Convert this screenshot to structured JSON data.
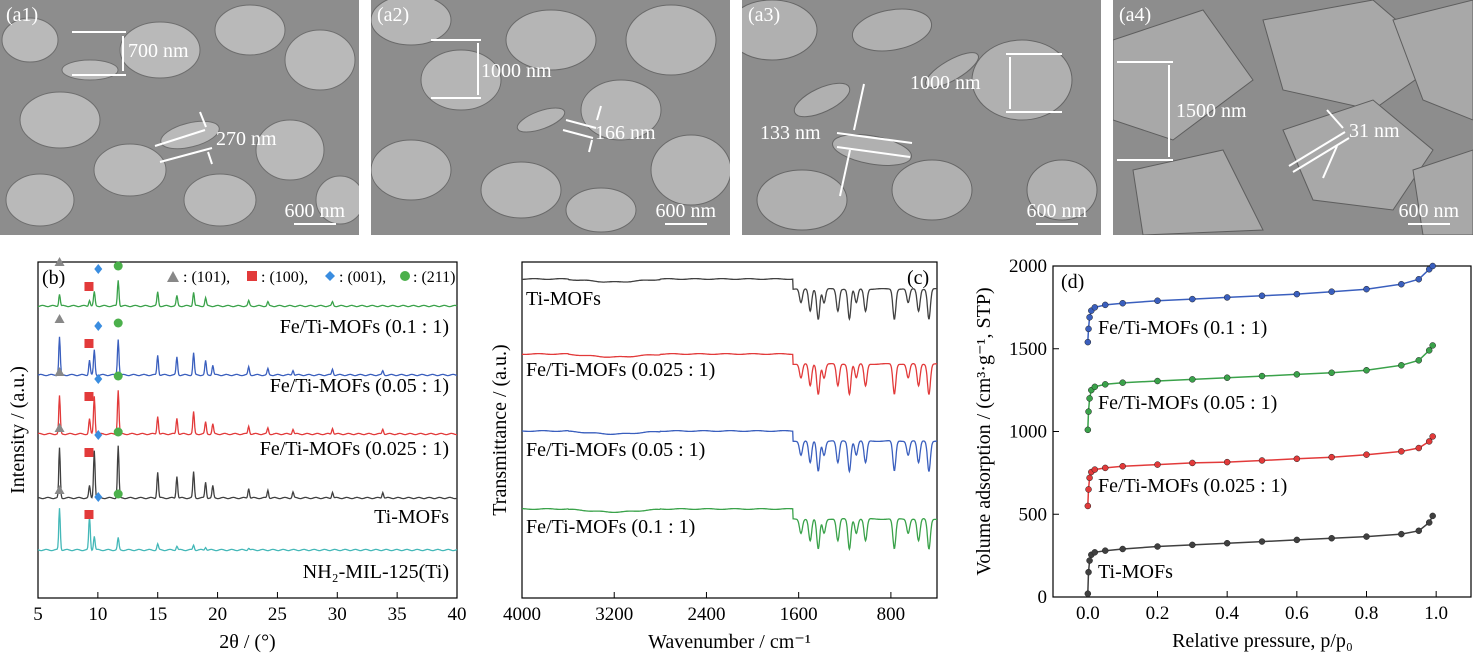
{
  "sem_panels": [
    {
      "label": "(a1)",
      "annotations": [
        "700 nm",
        "270 nm"
      ],
      "scale_bar": "600 nm"
    },
    {
      "label": "(a2)",
      "annotations": [
        "1000 nm",
        "166 nm"
      ],
      "scale_bar": "600 nm"
    },
    {
      "label": "(a3)",
      "annotations": [
        "1000 nm",
        "133 nm"
      ],
      "scale_bar": "600 nm"
    },
    {
      "label": "(a4)",
      "annotations": [
        "1500 nm",
        "31 nm"
      ],
      "scale_bar": "600 nm"
    }
  ],
  "colors": {
    "black": "#404040",
    "red": "#e23a3a",
    "blue": "#3a5fbe",
    "green": "#3aa24a",
    "teal": "#44b8b8",
    "sem_bg": "#8d8d8d"
  },
  "legend_b": {
    "tri": ": (101),",
    "sq": ": (100),",
    "dia": ": (001),",
    "dot": ": (211)"
  },
  "chart_data": [
    {
      "type": "line",
      "panel": "(b)",
      "xlabel": "2θ / (°)",
      "ylabel": "Intensity / (a.u.)",
      "xlim": [
        5,
        40
      ],
      "xticks": [
        "5",
        "10",
        "15",
        "20",
        "25",
        "30",
        "35",
        "40"
      ],
      "peaks_2theta": {
        "(101)": 6.8,
        "(100)": 9.3,
        "(001)": 9.7,
        "(211)": 11.7
      },
      "series": [
        {
          "name": "Fe/Ti-MOFs (0.1 : 1)",
          "color": "green",
          "peaks": [
            [
              6.8,
              12
            ],
            [
              9.3,
              6
            ],
            [
              9.7,
              14
            ],
            [
              11.7,
              26
            ],
            [
              15.0,
              14
            ],
            [
              16.6,
              10
            ],
            [
              18.0,
              14
            ],
            [
              19.0,
              8
            ],
            [
              22.6,
              5
            ],
            [
              24.2,
              4
            ],
            [
              29.6,
              4
            ]
          ]
        },
        {
          "name": "Fe/Ti-MOFs (0.05 : 1)",
          "color": "blue",
          "peaks": [
            [
              6.8,
              38
            ],
            [
              9.3,
              15
            ],
            [
              9.7,
              25
            ],
            [
              11.7,
              36
            ],
            [
              15.0,
              20
            ],
            [
              16.6,
              18
            ],
            [
              18.0,
              22
            ],
            [
              19.0,
              14
            ],
            [
              19.6,
              10
            ],
            [
              22.6,
              8
            ],
            [
              24.2,
              6
            ],
            [
              26.3,
              5
            ],
            [
              29.6,
              6
            ],
            [
              33.8,
              4
            ]
          ]
        },
        {
          "name": "Fe/Ti-MOFs (0.025 : 1)",
          "color": "red",
          "peaks": [
            [
              6.8,
              38
            ],
            [
              9.3,
              15
            ],
            [
              9.7,
              38
            ],
            [
              11.7,
              44
            ],
            [
              15.0,
              18
            ],
            [
              16.6,
              16
            ],
            [
              18.0,
              22
            ],
            [
              19.0,
              12
            ],
            [
              19.6,
              10
            ],
            [
              22.6,
              8
            ],
            [
              24.2,
              6
            ],
            [
              26.3,
              5
            ],
            [
              29.6,
              6
            ],
            [
              33.8,
              5
            ]
          ]
        },
        {
          "name": "Ti-MOFs",
          "color": "black",
          "peaks": [
            [
              6.8,
              50
            ],
            [
              9.3,
              12
            ],
            [
              9.7,
              48
            ],
            [
              11.7,
              52
            ],
            [
              15.0,
              26
            ],
            [
              16.6,
              22
            ],
            [
              18.0,
              26
            ],
            [
              19.0,
              16
            ],
            [
              19.6,
              12
            ],
            [
              22.6,
              10
            ],
            [
              24.2,
              8
            ],
            [
              26.3,
              6
            ],
            [
              29.6,
              6
            ],
            [
              33.8,
              6
            ]
          ]
        },
        {
          "name": "NH₂-MIL-125(Ti)",
          "color": "teal",
          "peaks": [
            [
              6.8,
              42
            ],
            [
              9.3,
              34
            ],
            [
              9.7,
              14
            ],
            [
              11.7,
              12
            ],
            [
              15.0,
              6
            ],
            [
              16.6,
              4
            ],
            [
              18.0,
              5
            ],
            [
              19.0,
              3
            ],
            [
              22.6,
              2
            ]
          ]
        }
      ]
    },
    {
      "type": "line",
      "panel": "(c)",
      "xlabel": "Wavenumber / cm⁻¹",
      "ylabel": "Transmittance / (a.u.)",
      "xlim": [
        4000,
        400
      ],
      "xticks": [
        "4000",
        "3200",
        "2400",
        "1600",
        "800"
      ],
      "series": [
        {
          "name": "Ti-MOFs",
          "color": "black"
        },
        {
          "name": "Fe/Ti-MOFs (0.025 : 1)",
          "color": "red"
        },
        {
          "name": "Fe/Ti-MOFs (0.05 : 1)",
          "color": "blue"
        },
        {
          "name": "Fe/Ti-MOFs (0.1 : 1)",
          "color": "green"
        }
      ],
      "bands_cm1": [
        1580,
        1500,
        1430,
        1380,
        1260,
        1160,
        1100,
        1020,
        770,
        650,
        560,
        470
      ]
    },
    {
      "type": "line",
      "panel": "(d)",
      "xlabel": "Relative pressure, p/p₀",
      "ylabel": "Volume adsorption / (cm³·g⁻¹, STP)",
      "xlim": [
        -0.1,
        1.1
      ],
      "ylim": [
        0,
        2000
      ],
      "xticks": [
        "0.0",
        "0.2",
        "0.4",
        "0.6",
        "0.8",
        "1.0"
      ],
      "yticks": [
        "0",
        "500",
        "1000",
        "1500",
        "2000"
      ],
      "series": [
        {
          "name": "Fe/Ti-MOFs (0.1 : 1)",
          "color": "blue",
          "x": [
            0.0,
            0.002,
            0.005,
            0.01,
            0.02,
            0.05,
            0.1,
            0.2,
            0.3,
            0.4,
            0.5,
            0.6,
            0.7,
            0.8,
            0.9,
            0.95,
            0.98,
            0.99
          ],
          "y": [
            1540,
            1620,
            1690,
            1730,
            1750,
            1765,
            1775,
            1790,
            1800,
            1810,
            1820,
            1830,
            1845,
            1860,
            1890,
            1920,
            1980,
            2000
          ]
        },
        {
          "name": "Fe/Ti-MOFs (0.05 : 1)",
          "color": "green",
          "x": [
            0.0,
            0.002,
            0.005,
            0.01,
            0.02,
            0.05,
            0.1,
            0.2,
            0.3,
            0.4,
            0.5,
            0.6,
            0.7,
            0.8,
            0.9,
            0.95,
            0.98,
            0.99
          ],
          "y": [
            1010,
            1120,
            1200,
            1250,
            1270,
            1285,
            1295,
            1305,
            1315,
            1325,
            1335,
            1345,
            1355,
            1370,
            1400,
            1430,
            1490,
            1520
          ]
        },
        {
          "name": "Fe/Ti-MOFs (0.025 : 1)",
          "color": "red",
          "x": [
            0.0,
            0.002,
            0.005,
            0.01,
            0.02,
            0.05,
            0.1,
            0.2,
            0.3,
            0.4,
            0.5,
            0.6,
            0.7,
            0.8,
            0.9,
            0.95,
            0.98,
            0.99
          ],
          "y": [
            550,
            650,
            720,
            755,
            770,
            780,
            790,
            800,
            810,
            815,
            825,
            835,
            845,
            860,
            880,
            900,
            940,
            970
          ]
        },
        {
          "name": "Ti-MOFs",
          "color": "black",
          "x": [
            0.0,
            0.002,
            0.005,
            0.01,
            0.02,
            0.05,
            0.1,
            0.2,
            0.3,
            0.4,
            0.5,
            0.6,
            0.7,
            0.8,
            0.9,
            0.95,
            0.98,
            0.99
          ],
          "y": [
            20,
            150,
            220,
            255,
            270,
            280,
            290,
            305,
            315,
            325,
            335,
            345,
            355,
            365,
            380,
            400,
            450,
            490
          ]
        }
      ]
    }
  ]
}
